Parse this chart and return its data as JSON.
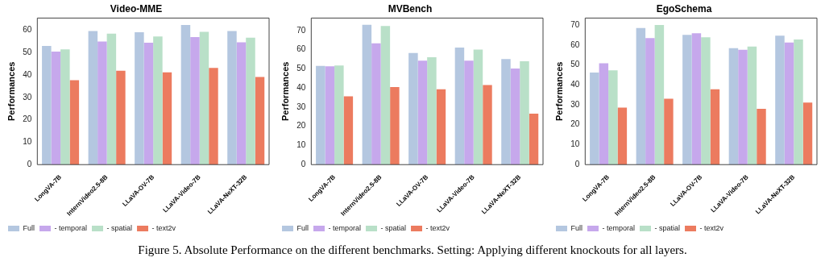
{
  "chart_data": [
    {
      "type": "bar",
      "title": "Video-MME",
      "ylabel": "Performances",
      "categories": [
        "LongVA-7B",
        "InternVideo2.5-8B",
        "LLaVA-OV-7B",
        "LLaVA-Video-7B",
        "LLaVA-NeXT-32B"
      ],
      "series": [
        {
          "name": "Full",
          "color": "#b4c7e0",
          "values": [
            53,
            59.7,
            59.2,
            62.4,
            59.7
          ]
        },
        {
          "name": "- temporal",
          "color": "#c6a8ec",
          "values": [
            50.5,
            55,
            54.5,
            57,
            54.7
          ]
        },
        {
          "name": "- spatial",
          "color": "#b9e0c8",
          "values": [
            51.5,
            58.5,
            57.3,
            59.3,
            56.7
          ]
        },
        {
          "name": "- text2v",
          "color": "#ec7b5f",
          "values": [
            37.7,
            42,
            41.2,
            43.2,
            39.2
          ]
        }
      ],
      "ylim": [
        0,
        65.5
      ],
      "yticks": [
        0,
        10,
        20,
        30,
        40,
        50,
        60
      ],
      "legend": "bottom left",
      "annotations": [
        "Figure 5. Absolute Performance on the different benchmarks. Setting: Applying different knockouts for all layers."
      ]
    },
    {
      "type": "bar",
      "title": "MVBench",
      "ylabel": "Performances",
      "categories": [
        "LongVA-7B",
        "InternVideo2.5-8B",
        "LLaVA-OV-7B",
        "LLaVA-Video-7B",
        "LLaVA-NeXT-32B"
      ],
      "series": [
        {
          "name": "Full",
          "color": "#b4c7e0",
          "values": [
            51.5,
            73,
            58.3,
            61.1,
            55.1
          ]
        },
        {
          "name": "- temporal",
          "color": "#c6a8ec",
          "values": [
            51.3,
            63.3,
            54.3,
            54.3,
            50.2
          ]
        },
        {
          "name": "- spatial",
          "color": "#b9e0c8",
          "values": [
            51.7,
            72.4,
            56.1,
            60.1,
            53.9
          ]
        },
        {
          "name": "- text2v",
          "color": "#ec7b5f",
          "values": [
            35.6,
            40.5,
            39.3,
            41.5,
            26.6
          ]
        }
      ],
      "ylim": [
        0,
        76.5
      ],
      "yticks": [
        0,
        10,
        20,
        30,
        40,
        50,
        60,
        70
      ],
      "legend": "bottom left"
    },
    {
      "type": "bar",
      "title": "EgoSchema",
      "ylabel": "Performances",
      "categories": [
        "LongVA-7B",
        "InternVideo2.5-8B",
        "LLaVA-OV-7B",
        "LLaVA-Video-7B",
        "LLaVA-NeXT-32B"
      ],
      "series": [
        {
          "name": "Full",
          "color": "#b4c7e0",
          "values": [
            46.2,
            68.5,
            65.1,
            58.4,
            64.7
          ]
        },
        {
          "name": "- temporal",
          "color": "#c6a8ec",
          "values": [
            50.8,
            63.5,
            65.9,
            57.6,
            61.2
          ]
        },
        {
          "name": "- spatial",
          "color": "#b9e0c8",
          "values": [
            47.3,
            70,
            63.9,
            59.2,
            62.7
          ]
        },
        {
          "name": "- text2v",
          "color": "#ec7b5f",
          "values": [
            28.6,
            33,
            37.8,
            28,
            31.1
          ]
        }
      ],
      "ylim": [
        0,
        73.5
      ],
      "yticks": [
        0,
        10,
        20,
        30,
        40,
        50,
        60,
        70
      ],
      "legend": "bottom left"
    }
  ]
}
